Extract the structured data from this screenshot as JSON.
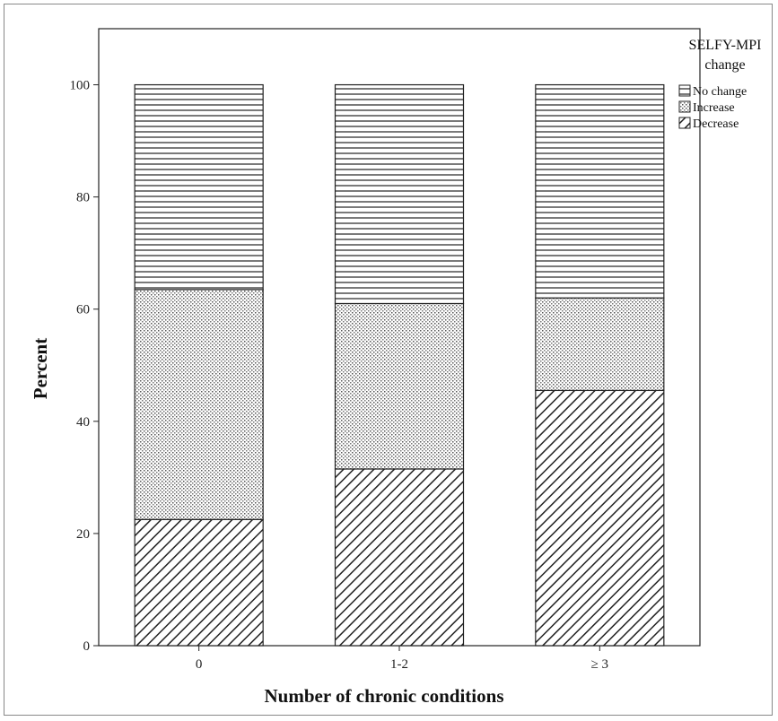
{
  "chart_data": {
    "type": "bar",
    "stacked": true,
    "categories": [
      "0",
      "1-2",
      "≥ 3"
    ],
    "series": [
      {
        "name": "Decrease",
        "pattern": "diagonal-hatch",
        "values": [
          22.5,
          31.5,
          45.5
        ]
      },
      {
        "name": "Increase",
        "pattern": "dots",
        "values": [
          41.0,
          29.5,
          16.5
        ]
      },
      {
        "name": "No change",
        "pattern": "horizontal-lines",
        "values": [
          36.5,
          39.0,
          38.0
        ]
      }
    ],
    "xlabel": "Number of chronic conditions",
    "ylabel": "Percent",
    "ylim": [
      0,
      110
    ],
    "yticks": [
      0,
      20,
      40,
      60,
      80,
      100
    ],
    "grid": false,
    "legend": {
      "title": "SELFY-MPI change",
      "placement": "right",
      "entries": [
        "No change",
        "Increase",
        "Decrease"
      ]
    }
  }
}
